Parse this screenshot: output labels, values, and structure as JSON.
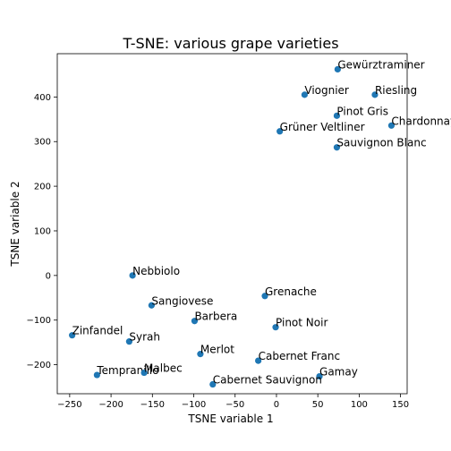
{
  "chart_data": {
    "type": "scatter",
    "title": "T-SNE: various grape varieties",
    "xlabel": "TSNE variable 1",
    "ylabel": "TSNE variable 2",
    "xlim": [
      -265,
      158
    ],
    "ylim": [
      -265,
      497
    ],
    "xticks": [
      -250,
      -200,
      -150,
      -100,
      -50,
      0,
      50,
      100,
      150
    ],
    "yticks": [
      -200,
      -100,
      0,
      100,
      200,
      300,
      400
    ],
    "grid": false,
    "marker_color": "#1f77b4",
    "points": [
      {
        "label": "Gewürztraminer",
        "x": 74,
        "y": 462
      },
      {
        "label": "Viognier",
        "x": 34,
        "y": 405
      },
      {
        "label": "Riesling",
        "x": 119,
        "y": 405
      },
      {
        "label": "Pinot Gris",
        "x": 73,
        "y": 358
      },
      {
        "label": "Chardonnay",
        "x": 139,
        "y": 336
      },
      {
        "label": "Grüner Veltliner",
        "x": 4,
        "y": 323
      },
      {
        "label": "Sauvignon Blanc",
        "x": 73,
        "y": 287
      },
      {
        "label": "Nebbiolo",
        "x": -174,
        "y": 0
      },
      {
        "label": "Grenache",
        "x": -14,
        "y": -46
      },
      {
        "label": "Sangiovese",
        "x": -151,
        "y": -67
      },
      {
        "label": "Barbera",
        "x": -99,
        "y": -102
      },
      {
        "label": "Pinot Noir",
        "x": -1,
        "y": -116
      },
      {
        "label": "Zinfandel",
        "x": -247,
        "y": -134
      },
      {
        "label": "Syrah",
        "x": -178,
        "y": -148
      },
      {
        "label": "Merlot",
        "x": -92,
        "y": -176
      },
      {
        "label": "Cabernet Franc",
        "x": -22,
        "y": -191
      },
      {
        "label": "Tempranillo",
        "x": -217,
        "y": -223
      },
      {
        "label": "Malbec",
        "x": -160,
        "y": -218
      },
      {
        "label": "Gamay",
        "x": 52,
        "y": -226
      },
      {
        "label": "Cabernet Sauvignon",
        "x": -77,
        "y": -244
      }
    ]
  }
}
